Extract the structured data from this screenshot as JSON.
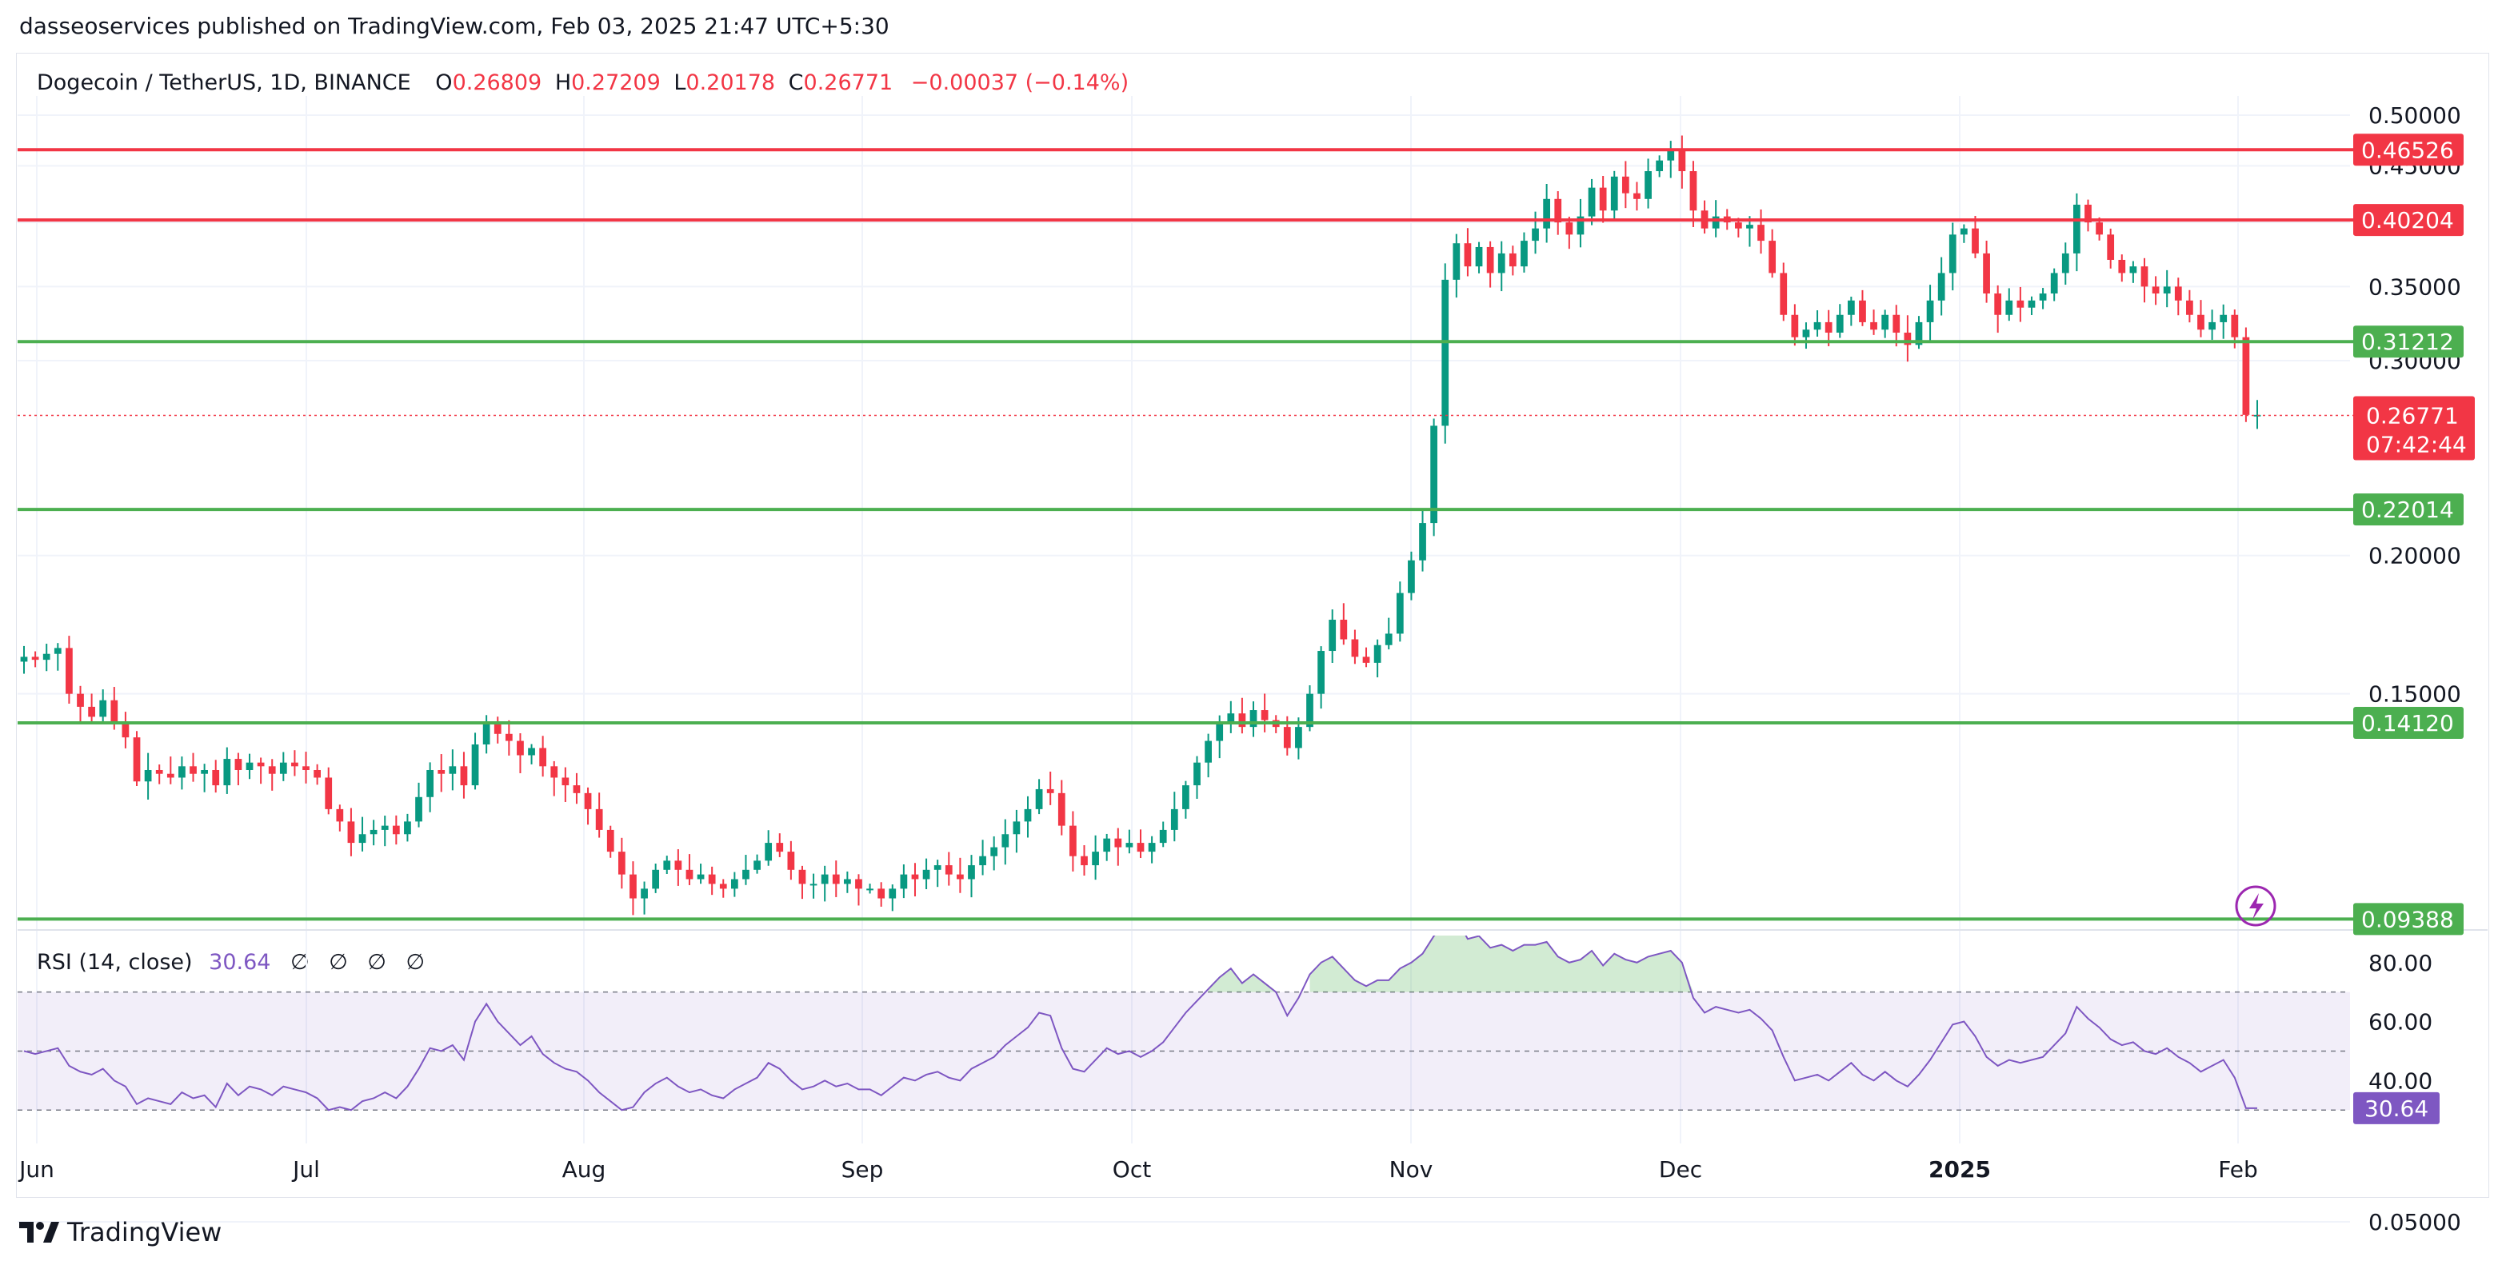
{
  "header": {
    "published": "dasseoservices published on TradingView.com, Feb 03, 2025 21:47 UTC+5:30"
  },
  "legend": {
    "symbol": "Dogecoin / TetherUS, 1D, BINANCE",
    "o_label": "O",
    "o": "0.26809",
    "h_label": "H",
    "h": "0.27209",
    "l_label": "L",
    "l": "0.20178",
    "c_label": "C",
    "c": "0.26771",
    "change": "−0.00037 (−0.14%)"
  },
  "rsi_legend": {
    "label": "RSI (14, close)",
    "value": "30.64",
    "na": [
      "∅",
      "∅",
      "∅",
      "∅"
    ]
  },
  "brand": {
    "name": "TradingView"
  },
  "colors": {
    "up": "#089981",
    "down": "#f23645",
    "resistance": "#f23645",
    "support": "#4caf50",
    "rsi": "#7e57c2",
    "axis_text": "#131722"
  },
  "chart_data": [
    {
      "type": "candlestick",
      "scale": "log",
      "y_ticks": [
        "0.50000",
        "0.45000",
        "0.40000",
        "0.35000",
        "0.30000",
        "0.20000",
        "0.15000",
        "0.05000"
      ],
      "x_ticks": [
        "Jun",
        "Jul",
        "Aug",
        "Sep",
        "Oct",
        "Nov",
        "Dec",
        "2025",
        "Feb"
      ],
      "horizontal_lines": [
        {
          "value": 0.46526,
          "label": "0.46526",
          "color": "#f23645"
        },
        {
          "value": 0.40204,
          "label": "0.40204",
          "color": "#f23645"
        },
        {
          "value": 0.31212,
          "label": "0.31212",
          "color": "#4caf50"
        },
        {
          "value": 0.22014,
          "label": "0.22014",
          "color": "#4caf50"
        },
        {
          "value": 0.1412,
          "label": "0.14120",
          "color": "#4caf50"
        },
        {
          "value": 0.09388,
          "label": "0.09388",
          "color": "#4caf50"
        }
      ],
      "last_price": {
        "value": 0.26771,
        "label": "0.26771",
        "countdown": "07:42:44"
      },
      "close_series": [
        0.162,
        0.161,
        0.163,
        0.165,
        0.15,
        0.146,
        0.143,
        0.148,
        0.141,
        0.137,
        0.125,
        0.128,
        0.127,
        0.126,
        0.129,
        0.127,
        0.128,
        0.124,
        0.131,
        0.128,
        0.13,
        0.129,
        0.127,
        0.13,
        0.129,
        0.128,
        0.126,
        0.118,
        0.115,
        0.11,
        0.112,
        0.113,
        0.114,
        0.112,
        0.115,
        0.121,
        0.128,
        0.127,
        0.129,
        0.124,
        0.135,
        0.141,
        0.138,
        0.136,
        0.132,
        0.134,
        0.129,
        0.126,
        0.124,
        0.122,
        0.118,
        0.113,
        0.108,
        0.103,
        0.098,
        0.1,
        0.104,
        0.106,
        0.104,
        0.102,
        0.103,
        0.101,
        0.1,
        0.102,
        0.104,
        0.106,
        0.11,
        0.108,
        0.104,
        0.101,
        0.101,
        0.103,
        0.101,
        0.102,
        0.1,
        0.1,
        0.098,
        0.1,
        0.103,
        0.102,
        0.104,
        0.105,
        0.103,
        0.102,
        0.105,
        0.107,
        0.109,
        0.112,
        0.115,
        0.118,
        0.123,
        0.122,
        0.114,
        0.107,
        0.105,
        0.108,
        0.111,
        0.109,
        0.11,
        0.108,
        0.11,
        0.113,
        0.118,
        0.124,
        0.13,
        0.136,
        0.141,
        0.144,
        0.14,
        0.145,
        0.142,
        0.14,
        0.134,
        0.14,
        0.15,
        0.164,
        0.175,
        0.168,
        0.162,
        0.16,
        0.166,
        0.17,
        0.185,
        0.198,
        0.214,
        0.262,
        0.355,
        0.383,
        0.365,
        0.38,
        0.36,
        0.375,
        0.365,
        0.385,
        0.395,
        0.42,
        0.4,
        0.39,
        0.405,
        0.43,
        0.41,
        0.44,
        0.425,
        0.42,
        0.445,
        0.455,
        0.465,
        0.445,
        0.41,
        0.395,
        0.405,
        0.4,
        0.395,
        0.398,
        0.385,
        0.36,
        0.33,
        0.315,
        0.32,
        0.325,
        0.318,
        0.33,
        0.34,
        0.325,
        0.32,
        0.33,
        0.318,
        0.31,
        0.325,
        0.34,
        0.36,
        0.39,
        0.395,
        0.375,
        0.345,
        0.33,
        0.34,
        0.335,
        0.34,
        0.345,
        0.36,
        0.375,
        0.415,
        0.4,
        0.39,
        0.37,
        0.36,
        0.365,
        0.35,
        0.345,
        0.35,
        0.34,
        0.33,
        0.32,
        0.325,
        0.33,
        0.315,
        0.268,
        0.268
      ]
    },
    {
      "type": "line",
      "name": "RSI (14, close)",
      "y_ticks": [
        "80.00",
        "60.00",
        "40.00"
      ],
      "ylim": [
        26,
        84
      ],
      "bands": {
        "upper": 70,
        "middle": 50,
        "lower": 30
      },
      "last": {
        "value": 30.64,
        "label": "30.64"
      },
      "series": [
        50,
        49,
        50,
        51,
        45,
        43,
        42,
        44,
        40,
        38,
        32,
        34,
        33,
        32,
        36,
        34,
        35,
        31,
        39,
        35,
        38,
        37,
        35,
        38,
        37,
        36,
        34,
        30,
        31,
        30,
        33,
        34,
        36,
        34,
        38,
        44,
        51,
        50,
        52,
        47,
        60,
        66,
        60,
        56,
        52,
        55,
        49,
        46,
        44,
        43,
        40,
        36,
        33,
        30,
        31,
        36,
        39,
        41,
        38,
        36,
        37,
        35,
        34,
        37,
        39,
        41,
        46,
        44,
        40,
        37,
        38,
        40,
        38,
        39,
        37,
        37,
        35,
        38,
        41,
        40,
        42,
        43,
        41,
        40,
        44,
        46,
        48,
        52,
        55,
        58,
        63,
        62,
        51,
        44,
        43,
        47,
        51,
        49,
        50,
        48,
        50,
        53,
        58,
        63,
        67,
        71,
        75,
        78,
        73,
        76,
        73,
        70,
        62,
        68,
        76,
        80,
        82,
        78,
        74,
        72,
        74,
        74,
        78,
        80,
        83,
        89,
        93,
        95,
        88,
        89,
        85,
        86,
        84,
        86,
        86,
        87,
        82,
        80,
        81,
        84,
        79,
        83,
        81,
        80,
        82,
        83,
        84,
        80,
        68,
        63,
        65,
        64,
        63,
        64,
        61,
        57,
        48,
        40,
        41,
        42,
        40,
        43,
        46,
        42,
        40,
        43,
        40,
        38,
        42,
        47,
        53,
        59,
        60,
        55,
        48,
        45,
        47,
        46,
        47,
        48,
        52,
        56,
        65,
        61,
        58,
        54,
        52,
        53,
        50,
        49,
        51,
        48,
        46,
        43,
        45,
        47,
        41,
        30.64,
        30.64
      ]
    }
  ]
}
